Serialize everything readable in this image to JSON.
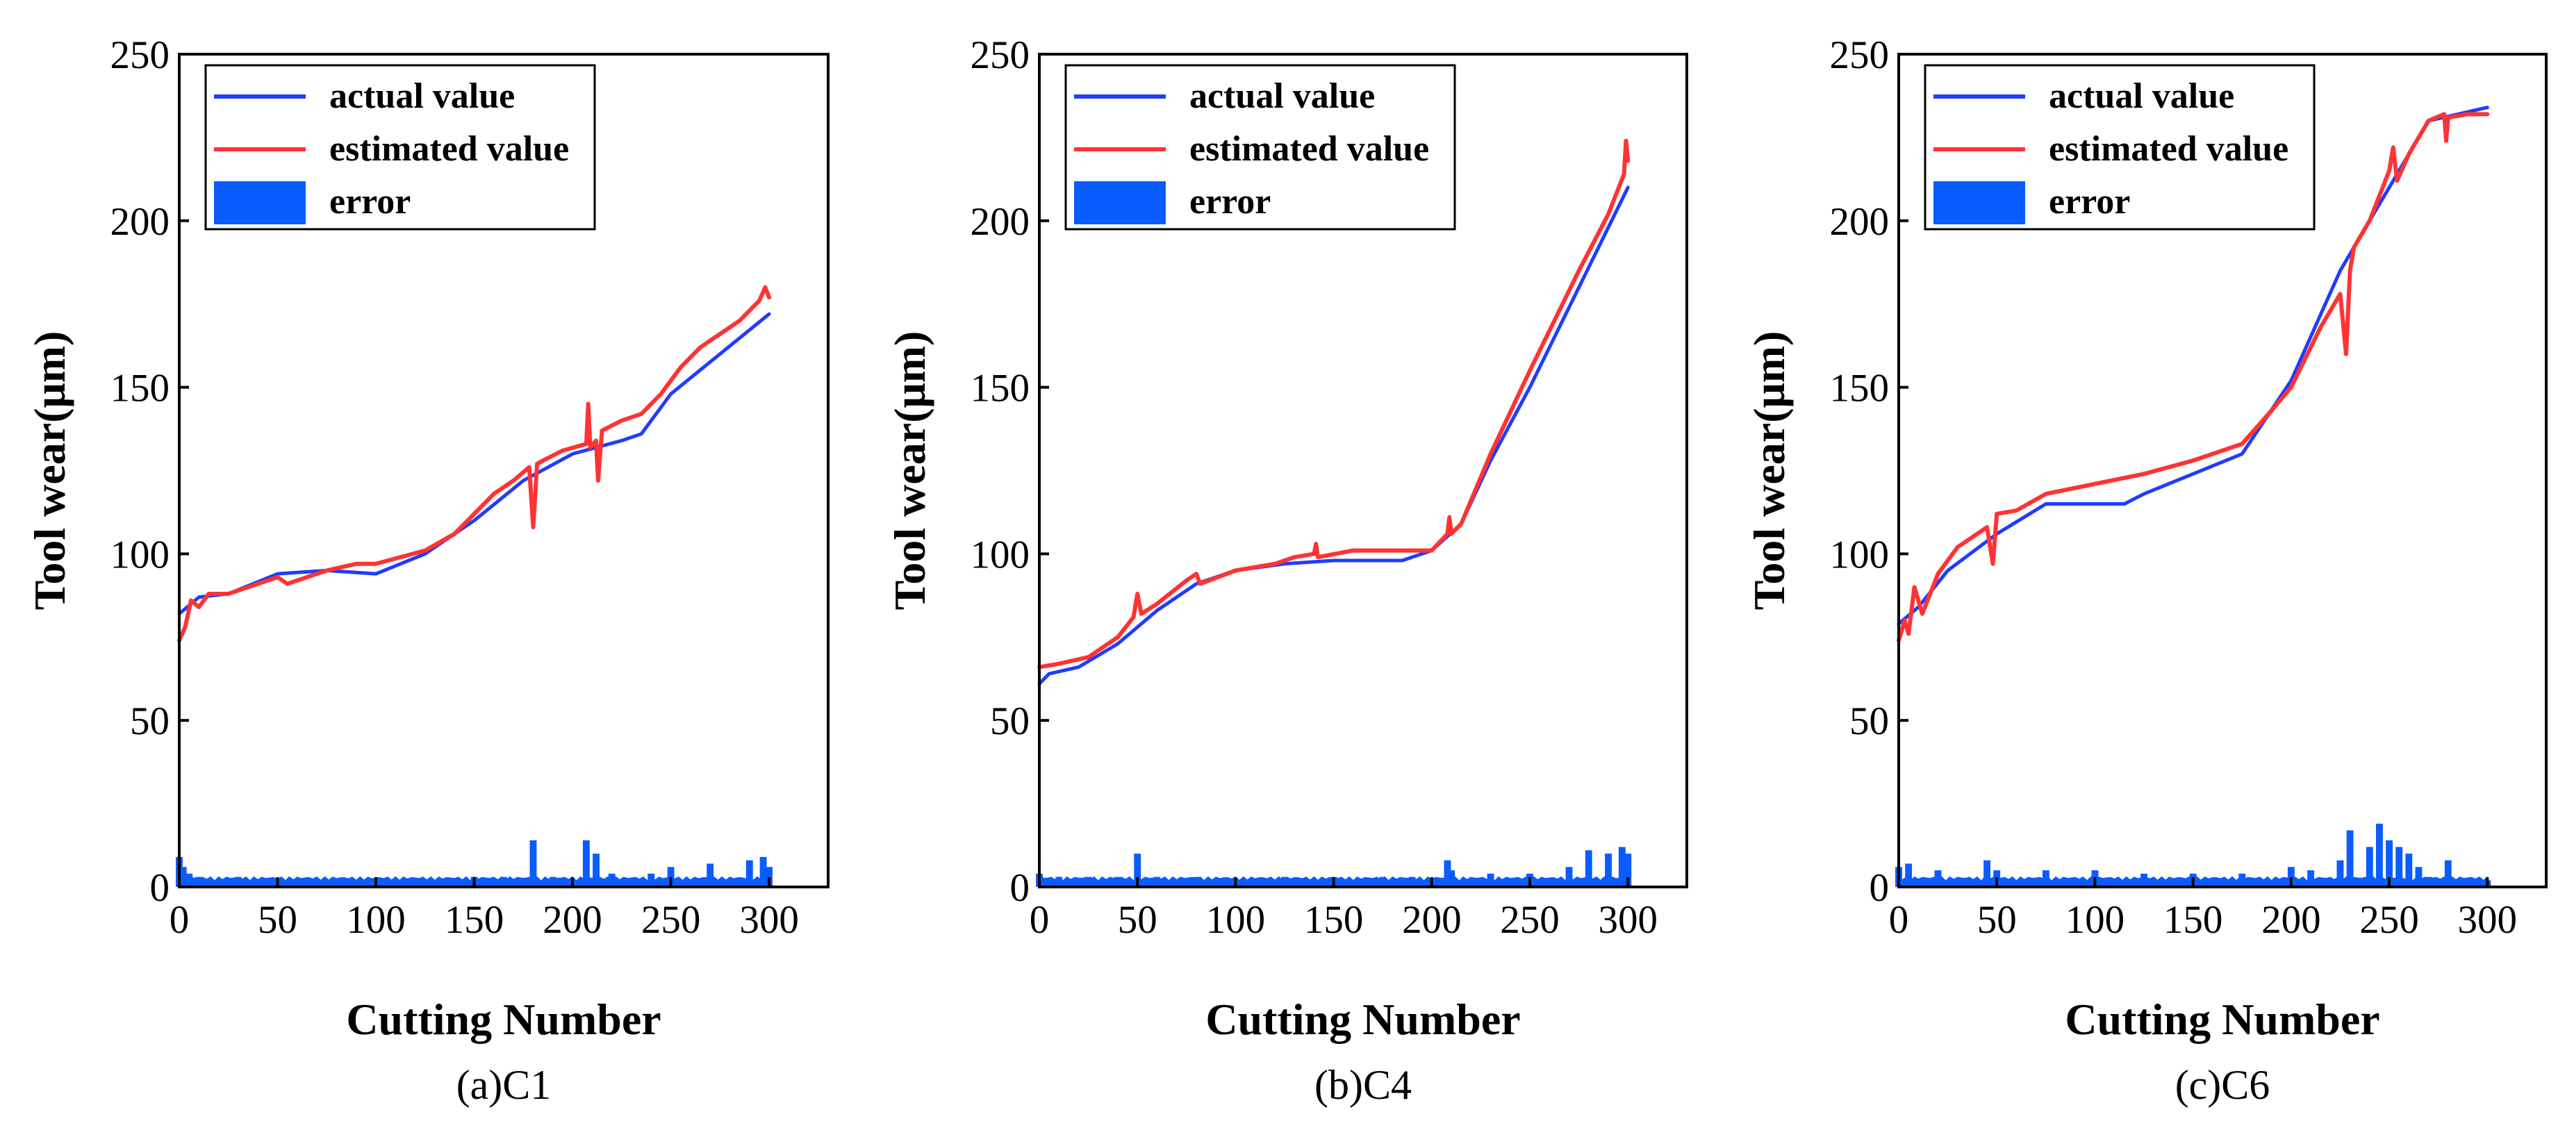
{
  "chart_data": [
    {
      "type": "line",
      "panel_caption": "(a)C1",
      "xlabel": "Cutting Number",
      "ylabel": "Tool wear(μm)",
      "xlim": [
        0,
        330
      ],
      "ylim": [
        0,
        250
      ],
      "xticks": [
        "0",
        "50",
        "100",
        "150",
        "200",
        "250",
        "300"
      ],
      "yticks": [
        "0",
        "50",
        "100",
        "150",
        "200",
        "250"
      ],
      "legend": [
        "actual value",
        "estimated value",
        "error"
      ],
      "series": [
        {
          "name": "actual value",
          "color": "#1f3cff",
          "x": [
            0,
            10,
            25,
            50,
            75,
            100,
            125,
            150,
            175,
            200,
            225,
            235,
            250,
            275,
            300
          ],
          "y": [
            82,
            87,
            88,
            94,
            95,
            94,
            100,
            110,
            122,
            130,
            134,
            136,
            148,
            160,
            172
          ]
        },
        {
          "name": "estimated value",
          "color": "#ff3333",
          "x": [
            0,
            3,
            6,
            10,
            15,
            25,
            40,
            50,
            55,
            75,
            90,
            100,
            125,
            140,
            150,
            160,
            170,
            178,
            180,
            182,
            185,
            195,
            207,
            208,
            209,
            212,
            213,
            215,
            225,
            235,
            245,
            255,
            265,
            275,
            285,
            295,
            298,
            300
          ],
          "y": [
            74,
            78,
            86,
            84,
            88,
            88,
            91,
            93,
            91,
            95,
            97,
            97,
            101,
            106,
            112,
            118,
            122,
            126,
            108,
            127,
            128,
            131,
            133,
            145,
            132,
            134,
            122,
            137,
            140,
            142,
            148,
            156,
            162,
            166,
            170,
            176,
            180,
            177
          ]
        },
        {
          "name": "error",
          "type": "bar",
          "color": "#0a5cff",
          "x": [
            0,
            2,
            5,
            10,
            20,
            30,
            50,
            70,
            100,
            130,
            150,
            165,
            180,
            190,
            207,
            212,
            220,
            240,
            250,
            270,
            290,
            297,
            300
          ],
          "y": [
            9,
            6,
            4,
            3,
            2,
            3,
            2,
            2,
            2,
            2,
            3,
            3,
            14,
            3,
            14,
            10,
            4,
            4,
            6,
            7,
            8,
            9,
            6
          ]
        }
      ]
    },
    {
      "type": "line",
      "panel_caption": "(b)C4",
      "xlabel": "Cutting Number",
      "ylabel": "Tool wear(μm)",
      "xlim": [
        0,
        330
      ],
      "ylim": [
        0,
        250
      ],
      "xticks": [
        "0",
        "50",
        "100",
        "150",
        "200",
        "250",
        "300"
      ],
      "yticks": [
        "0",
        "50",
        "100",
        "150",
        "200",
        "250"
      ],
      "legend": [
        "actual value",
        "estimated value",
        "error"
      ],
      "series": [
        {
          "name": "actual value",
          "color": "#1f3cff",
          "x": [
            0,
            5,
            20,
            40,
            60,
            80,
            100,
            125,
            150,
            175,
            185,
            200,
            215,
            230,
            250,
            275,
            300
          ],
          "y": [
            61,
            64,
            66,
            73,
            83,
            91,
            95,
            97,
            98,
            98,
            98,
            101,
            109,
            128,
            150,
            180,
            210
          ]
        },
        {
          "name": "estimated value",
          "color": "#ff3333",
          "x": [
            0,
            10,
            25,
            40,
            48,
            50,
            52,
            60,
            75,
            80,
            82,
            100,
            120,
            130,
            140,
            141,
            142,
            160,
            180,
            200,
            208,
            209,
            210,
            215,
            230,
            250,
            275,
            290,
            298,
            299,
            300
          ],
          "y": [
            66,
            67,
            69,
            75,
            81,
            88,
            82,
            85,
            92,
            94,
            91,
            95,
            97,
            99,
            100,
            103,
            99,
            101,
            101,
            101,
            106,
            111,
            106,
            109,
            130,
            155,
            185,
            202,
            214,
            224,
            218
          ]
        },
        {
          "name": "error",
          "type": "bar",
          "color": "#0a5cff",
          "x": [
            0,
            10,
            25,
            40,
            50,
            60,
            80,
            100,
            125,
            150,
            175,
            190,
            208,
            210,
            230,
            250,
            270,
            280,
            290,
            297,
            300
          ],
          "y": [
            4,
            3,
            3,
            3,
            10,
            3,
            3,
            2,
            3,
            3,
            3,
            3,
            8,
            5,
            4,
            4,
            6,
            11,
            10,
            12,
            10
          ]
        }
      ]
    },
    {
      "type": "line",
      "panel_caption": "(c)C6",
      "xlabel": "Cutting Number",
      "ylabel": "Tool wear(μm)",
      "xlim": [
        0,
        330
      ],
      "ylim": [
        0,
        250
      ],
      "xticks": [
        "0",
        "50",
        "100",
        "150",
        "200",
        "250",
        "300"
      ],
      "yticks": [
        "0",
        "50",
        "100",
        "150",
        "200",
        "250"
      ],
      "legend": [
        "actual value",
        "estimated value",
        "error"
      ],
      "series": [
        {
          "name": "actual value",
          "color": "#1f3cff",
          "x": [
            0,
            10,
            25,
            50,
            75,
            100,
            115,
            125,
            150,
            175,
            200,
            225,
            250,
            270,
            300
          ],
          "y": [
            79,
            84,
            95,
            106,
            115,
            115,
            115,
            118,
            124,
            130,
            152,
            185,
            210,
            230,
            234
          ]
        },
        {
          "name": "estimated value",
          "color": "#ff3333",
          "x": [
            0,
            3,
            5,
            8,
            12,
            20,
            30,
            45,
            48,
            50,
            60,
            75,
            100,
            125,
            150,
            175,
            190,
            200,
            215,
            225,
            228,
            230,
            232,
            240,
            250,
            252,
            254,
            260,
            270,
            278,
            279,
            280,
            290,
            300
          ],
          "y": [
            74,
            80,
            76,
            90,
            82,
            94,
            102,
            108,
            97,
            112,
            113,
            118,
            121,
            124,
            128,
            133,
            143,
            150,
            168,
            178,
            160,
            185,
            192,
            200,
            215,
            222,
            212,
            220,
            230,
            232,
            224,
            231,
            232,
            232
          ]
        },
        {
          "name": "error",
          "type": "bar",
          "color": "#0a5cff",
          "x": [
            0,
            5,
            20,
            45,
            50,
            75,
            100,
            125,
            150,
            175,
            200,
            210,
            225,
            230,
            240,
            245,
            250,
            255,
            260,
            265,
            270,
            280,
            300
          ],
          "y": [
            6,
            7,
            5,
            8,
            5,
            5,
            5,
            4,
            4,
            4,
            6,
            5,
            8,
            17,
            12,
            19,
            14,
            12,
            10,
            6,
            3,
            8,
            2
          ]
        }
      ]
    }
  ]
}
